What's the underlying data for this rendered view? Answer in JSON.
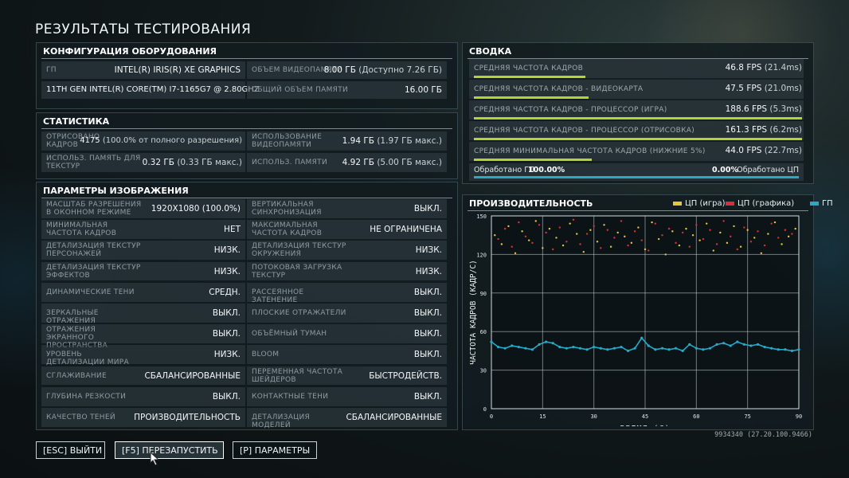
{
  "page_title": "РЕЗУЛЬТАТЫ ТЕСТИРОВАНИЯ",
  "hardware": {
    "title": "КОНФИГУРАЦИЯ ОБОРУДОВАНИЯ",
    "gpu_label": "ГП",
    "gpu_value": "INTEL(R) IRIS(R) XE GRAPHICS",
    "vram_label": "ОБЪЕМ ВИДЕОПАМЯТИ",
    "vram_value": "8.00 ГБ",
    "vram_sub": "(Доступно 7.26 ГБ)",
    "cpu_value": "11TH GEN INTEL(R) CORE(TM) I7-1165G7 @ 2.80GHZ",
    "ram_label": "ОБЩИЙ ОБЪЕМ ПАМЯТИ",
    "ram_value": "16.00 ГБ"
  },
  "stats": {
    "title": "СТАТИСТИКА",
    "frames_label": "ОТРИСОВАНО КАДРОВ",
    "frames_value": "4175",
    "frames_sub": "(100.0% от полного разрешения)",
    "vram_usage_label": "ИСПОЛЬЗОВАНИЕ ВИДЕОПАМЯТИ",
    "vram_usage_value": "1.94 ГБ",
    "vram_usage_sub": "(1.97 ГБ макс.)",
    "tex_mem_label": "ИСПОЛЬЗ. ПАМЯТЬ ДЛЯ ТЕКСТУР",
    "tex_mem_value": "0.32 ГБ",
    "tex_mem_sub": "(0.33 ГБ макс.)",
    "mem_label": "ИСПОЛЬЗ. ПАМЯТИ",
    "mem_value": "4.92 ГБ",
    "mem_sub": "(5.00 ГБ макс.)"
  },
  "settings": {
    "title": "ПАРАМЕТРЫ ИЗОБРАЖЕНИЯ",
    "rows": [
      [
        {
          "label": "МАСШТАБ РАЗРЕШЕНИЯ В ОКОННОМ РЕЖИМЕ",
          "value": "1920X1080 (100.0%)"
        },
        {
          "label": "ВЕРТИКАЛЬНАЯ СИНХРОНИЗАЦИЯ",
          "value": "ВЫКЛ."
        }
      ],
      [
        {
          "label": "МИНИМАЛЬНАЯ ЧАСТОТА КАДРОВ",
          "value": "НЕТ"
        },
        {
          "label": "МАКСИМАЛЬНАЯ ЧАСТОТА КАДРОВ",
          "value": "НЕ ОГРАНИЧЕНА"
        }
      ],
      [
        {
          "label": "ДЕТАЛИЗАЦИЯ ТЕКСТУР ПЕРСОНАЖЕЙ",
          "value": "НИЗК."
        },
        {
          "label": "ДЕТАЛИЗАЦИЯ ТЕКСТУР ОКРУЖЕНИЯ",
          "value": "НИЗК."
        }
      ],
      [
        {
          "label": "ДЕТАЛИЗАЦИЯ ТЕКСТУР ЭФФЕКТОВ",
          "value": "НИЗК."
        },
        {
          "label": "ПОТОКОВАЯ ЗАГРУЗКА ТЕКСТУР",
          "value": "НИЗК."
        }
      ],
      [
        {
          "label": "ДИНАМИЧЕСКИЕ ТЕНИ",
          "value": "СРЕДН."
        },
        {
          "label": "РАССЕЯННОЕ ЗАТЕНЕНИЕ",
          "value": "ВЫКЛ."
        }
      ],
      [
        {
          "label": "ЗЕРКАЛЬНЫЕ ОТРАЖЕНИЯ",
          "value": "ВЫКЛ."
        },
        {
          "label": "ПЛОСКИЕ ОТРАЖАТЕЛИ",
          "value": "ВЫКЛ."
        }
      ],
      [
        {
          "label": "ОТРАЖЕНИЯ ЭКРАННОГО ПРОСТРАНСТВА",
          "value": "ВЫКЛ."
        },
        {
          "label": "ОБЪЁМНЫЙ ТУМАН",
          "value": "ВЫКЛ."
        }
      ],
      [
        {
          "label": "УРОВЕНЬ ДЕТАЛИЗАЦИИ МИРА",
          "value": "НИЗК."
        },
        {
          "label": "BLOOM",
          "value": "ВЫКЛ."
        }
      ],
      [
        {
          "label": "СГЛАЖИВАНИЕ",
          "value": "СБАЛАНСИРОВАННЫЕ"
        },
        {
          "label": "ПЕРЕМЕННАЯ ЧАСТОТА ШЕЙДЕРОВ",
          "value": "БЫСТРОДЕЙСТВ."
        }
      ],
      [
        {
          "label": "ГЛУБИНА РЕЗКОСТИ",
          "value": "ВЫКЛ."
        },
        {
          "label": "КОНТАКТНЫЕ ТЕНИ",
          "value": "ВЫКЛ."
        }
      ],
      [
        {
          "label": "КАЧЕСТВО ТЕНЕЙ",
          "value": "ПРОИЗВОДИТЕЛЬНОСТЬ"
        },
        {
          "label": "ДЕТАЛИЗАЦИЯ МОДЕЛЕЙ",
          "value": "СБАЛАНСИРОВАННЫЕ"
        }
      ]
    ]
  },
  "summary": {
    "title": "СВОДКА",
    "bar_color": "#b5d334",
    "rows": [
      {
        "label": "СРЕДНЯЯ ЧАСТОТА КАДРОВ",
        "value": "46.8 FPS",
        "sub": "(21.4ms)",
        "fill": 0.34
      },
      {
        "label": "СРЕДНЯЯ ЧАСТОТА КАДРОВ - ВИДЕОКАРТА",
        "value": "47.5 FPS",
        "sub": "(21.0ms)",
        "fill": 0.35
      },
      {
        "label": "СРЕДНЯЯ ЧАСТОТА КАДРОВ - ПРОЦЕССОР (ИГРА)",
        "value": "188.6 FPS",
        "sub": "(5.3ms)",
        "fill": 1.0
      },
      {
        "label": "СРЕДНЯЯ ЧАСТОТА КАДРОВ - ПРОЦЕССОР (ОТРИСОВКА)",
        "value": "161.3 FPS",
        "sub": "(6.2ms)",
        "fill": 1.0
      },
      {
        "label": "СРЕДНЯЯ МИНИМАЛЬНАЯ ЧАСТОТА КАДРОВ (НИЖНИЕ 5%)",
        "value": "44.0 FPS",
        "sub": "(22.7ms)",
        "fill": 0.36
      }
    ],
    "bound": {
      "left_label": "Обработано ГП",
      "left_value": "100.00%",
      "right_value": "0.00%",
      "right_label": "Обработано ЦП",
      "gpu_fraction": 1.0,
      "color": "#2aa9c3"
    }
  },
  "performance": {
    "title": "ПРОИЗВОДИТЕЛЬНОСТЬ",
    "legend": [
      {
        "name": "ЦП (игра)",
        "color": "#e5c73a"
      },
      {
        "name": "ЦП (графика)",
        "color": "#d8303b"
      },
      {
        "name": "ГП",
        "color": "#27a9c8"
      }
    ]
  },
  "chart_data": {
    "type": "scatter",
    "title": "ПРОИЗВОДИТЕЛЬНОСТЬ",
    "xlabel": "ВРЕМЯ (С)",
    "ylabel": "ЧАСТОТА КАДРОВ (КАДР/С)",
    "xlim": [
      0,
      90
    ],
    "ylim": [
      0,
      150
    ],
    "xticks": [
      "0",
      "15",
      "30",
      "45",
      "60",
      "75",
      "90"
    ],
    "yticks": [
      "0",
      "30",
      "60",
      "90",
      "120",
      "150"
    ],
    "grid": true,
    "legend_position": "top-right",
    "series": [
      {
        "name": "ЦП (игра)",
        "color": "#e5c73a",
        "description_range": [
          110,
          150
        ],
        "x": [
          1,
          3,
          5,
          7,
          9,
          11,
          13,
          15,
          17,
          19,
          21,
          23,
          25,
          27,
          29,
          31,
          33,
          35,
          37,
          39,
          41,
          43,
          45,
          47,
          49,
          51,
          53,
          55,
          57,
          59,
          61,
          63,
          65,
          67,
          69,
          71,
          73,
          75,
          77,
          79,
          81,
          83,
          85,
          87,
          89
        ],
        "y": [
          135,
          128,
          142,
          121,
          138,
          131,
          146,
          125,
          140,
          133,
          127,
          144,
          136,
          122,
          139,
          130,
          143,
          126,
          137,
          134,
          129,
          141,
          124,
          145,
          132,
          120,
          138,
          127,
          140,
          135,
          131,
          144,
          123,
          137,
          129,
          142,
          126,
          139,
          133,
          121,
          136,
          145,
          128,
          134,
          140
        ]
      },
      {
        "name": "ЦП (графика)",
        "color": "#d8303b",
        "x": [
          2,
          4,
          6,
          8,
          10,
          12,
          14,
          16,
          18,
          20,
          22,
          24,
          26,
          28,
          30,
          32,
          34,
          36,
          38,
          40,
          42,
          44,
          46,
          48,
          50,
          52,
          54,
          56,
          58,
          60,
          62,
          64,
          66,
          68,
          70,
          72,
          74,
          76,
          78,
          80,
          82,
          84,
          86,
          88
        ],
        "y": [
          132,
          140,
          126,
          145,
          134,
          129,
          143,
          137,
          124,
          141,
          130,
          147,
          128,
          136,
          142,
          125,
          139,
          133,
          146,
          127,
          138,
          131,
          123,
          144,
          135,
          140,
          129,
          137,
          126,
          143,
          132,
          139,
          128,
          146,
          134,
          124,
          141,
          130,
          138,
          127,
          144,
          133,
          139,
          136
        ]
      },
      {
        "name": "ГП",
        "color": "#27a9c8",
        "x": [
          0,
          2,
          4,
          6,
          8,
          10,
          12,
          14,
          16,
          18,
          20,
          22,
          24,
          26,
          28,
          30,
          32,
          34,
          36,
          38,
          40,
          42,
          44,
          46,
          48,
          50,
          52,
          54,
          56,
          58,
          60,
          62,
          64,
          66,
          68,
          70,
          72,
          74,
          76,
          78,
          80,
          82,
          84,
          86,
          88,
          90
        ],
        "y": [
          52,
          48,
          47,
          49,
          48,
          47,
          46,
          50,
          52,
          51,
          48,
          47,
          48,
          47,
          46,
          48,
          47,
          46,
          47,
          48,
          45,
          47,
          55,
          49,
          46,
          47,
          46,
          47,
          45,
          50,
          47,
          46,
          47,
          50,
          51,
          49,
          52,
          50,
          49,
          50,
          48,
          47,
          46,
          46,
          45,
          46
        ]
      }
    ]
  },
  "version": "9934340 (27.20.100.9466)",
  "buttons": {
    "exit": "[ESC] ВЫЙТИ",
    "restart": "[F5] ПЕРЕЗАПУСТИТЬ",
    "params": "[P] ПАРАМЕТРЫ"
  }
}
